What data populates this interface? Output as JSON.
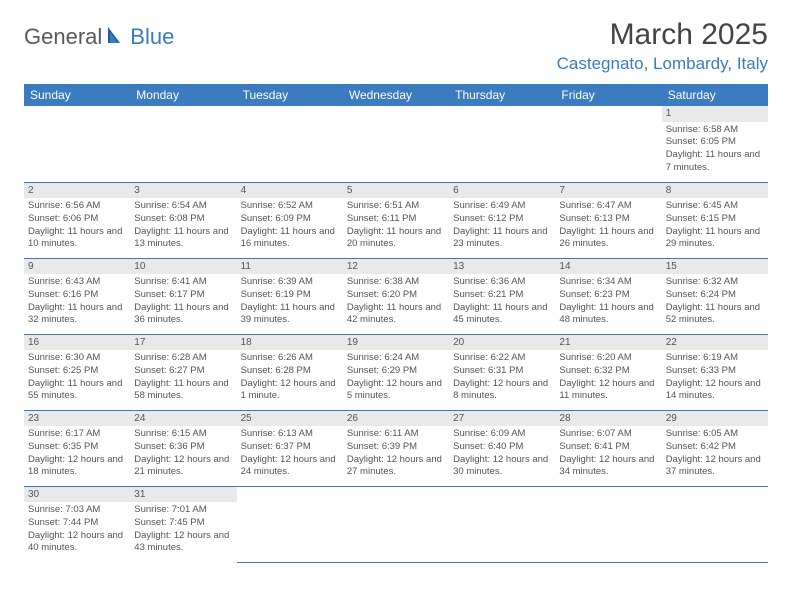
{
  "brand": {
    "general": "General",
    "blue": "Blue"
  },
  "title": "March 2025",
  "location": "Castegnato, Lombardy, Italy",
  "header_bg": "#3b7bbf",
  "header_fg": "#ffffff",
  "daynum_bg": "#e9e9e9",
  "border_color": "#3b7bbf",
  "font_size_cell": 9.5,
  "weekdays": [
    "Sunday",
    "Monday",
    "Tuesday",
    "Wednesday",
    "Thursday",
    "Friday",
    "Saturday"
  ],
  "weeks": [
    [
      null,
      null,
      null,
      null,
      null,
      null,
      {
        "n": "1",
        "sr": "6:58 AM",
        "ss": "6:05 PM",
        "dl": "11 hours and 7 minutes."
      }
    ],
    [
      {
        "n": "2",
        "sr": "6:56 AM",
        "ss": "6:06 PM",
        "dl": "11 hours and 10 minutes."
      },
      {
        "n": "3",
        "sr": "6:54 AM",
        "ss": "6:08 PM",
        "dl": "11 hours and 13 minutes."
      },
      {
        "n": "4",
        "sr": "6:52 AM",
        "ss": "6:09 PM",
        "dl": "11 hours and 16 minutes."
      },
      {
        "n": "5",
        "sr": "6:51 AM",
        "ss": "6:11 PM",
        "dl": "11 hours and 20 minutes."
      },
      {
        "n": "6",
        "sr": "6:49 AM",
        "ss": "6:12 PM",
        "dl": "11 hours and 23 minutes."
      },
      {
        "n": "7",
        "sr": "6:47 AM",
        "ss": "6:13 PM",
        "dl": "11 hours and 26 minutes."
      },
      {
        "n": "8",
        "sr": "6:45 AM",
        "ss": "6:15 PM",
        "dl": "11 hours and 29 minutes."
      }
    ],
    [
      {
        "n": "9",
        "sr": "6:43 AM",
        "ss": "6:16 PM",
        "dl": "11 hours and 32 minutes."
      },
      {
        "n": "10",
        "sr": "6:41 AM",
        "ss": "6:17 PM",
        "dl": "11 hours and 36 minutes."
      },
      {
        "n": "11",
        "sr": "6:39 AM",
        "ss": "6:19 PM",
        "dl": "11 hours and 39 minutes."
      },
      {
        "n": "12",
        "sr": "6:38 AM",
        "ss": "6:20 PM",
        "dl": "11 hours and 42 minutes."
      },
      {
        "n": "13",
        "sr": "6:36 AM",
        "ss": "6:21 PM",
        "dl": "11 hours and 45 minutes."
      },
      {
        "n": "14",
        "sr": "6:34 AM",
        "ss": "6:23 PM",
        "dl": "11 hours and 48 minutes."
      },
      {
        "n": "15",
        "sr": "6:32 AM",
        "ss": "6:24 PM",
        "dl": "11 hours and 52 minutes."
      }
    ],
    [
      {
        "n": "16",
        "sr": "6:30 AM",
        "ss": "6:25 PM",
        "dl": "11 hours and 55 minutes."
      },
      {
        "n": "17",
        "sr": "6:28 AM",
        "ss": "6:27 PM",
        "dl": "11 hours and 58 minutes."
      },
      {
        "n": "18",
        "sr": "6:26 AM",
        "ss": "6:28 PM",
        "dl": "12 hours and 1 minute."
      },
      {
        "n": "19",
        "sr": "6:24 AM",
        "ss": "6:29 PM",
        "dl": "12 hours and 5 minutes."
      },
      {
        "n": "20",
        "sr": "6:22 AM",
        "ss": "6:31 PM",
        "dl": "12 hours and 8 minutes."
      },
      {
        "n": "21",
        "sr": "6:20 AM",
        "ss": "6:32 PM",
        "dl": "12 hours and 11 minutes."
      },
      {
        "n": "22",
        "sr": "6:19 AM",
        "ss": "6:33 PM",
        "dl": "12 hours and 14 minutes."
      }
    ],
    [
      {
        "n": "23",
        "sr": "6:17 AM",
        "ss": "6:35 PM",
        "dl": "12 hours and 18 minutes."
      },
      {
        "n": "24",
        "sr": "6:15 AM",
        "ss": "6:36 PM",
        "dl": "12 hours and 21 minutes."
      },
      {
        "n": "25",
        "sr": "6:13 AM",
        "ss": "6:37 PM",
        "dl": "12 hours and 24 minutes."
      },
      {
        "n": "26",
        "sr": "6:11 AM",
        "ss": "6:39 PM",
        "dl": "12 hours and 27 minutes."
      },
      {
        "n": "27",
        "sr": "6:09 AM",
        "ss": "6:40 PM",
        "dl": "12 hours and 30 minutes."
      },
      {
        "n": "28",
        "sr": "6:07 AM",
        "ss": "6:41 PM",
        "dl": "12 hours and 34 minutes."
      },
      {
        "n": "29",
        "sr": "6:05 AM",
        "ss": "6:42 PM",
        "dl": "12 hours and 37 minutes."
      }
    ],
    [
      {
        "n": "30",
        "sr": "7:03 AM",
        "ss": "7:44 PM",
        "dl": "12 hours and 40 minutes."
      },
      {
        "n": "31",
        "sr": "7:01 AM",
        "ss": "7:45 PM",
        "dl": "12 hours and 43 minutes."
      },
      null,
      null,
      null,
      null,
      null
    ]
  ],
  "labels": {
    "sunrise": "Sunrise:",
    "sunset": "Sunset:",
    "daylight": "Daylight:"
  }
}
